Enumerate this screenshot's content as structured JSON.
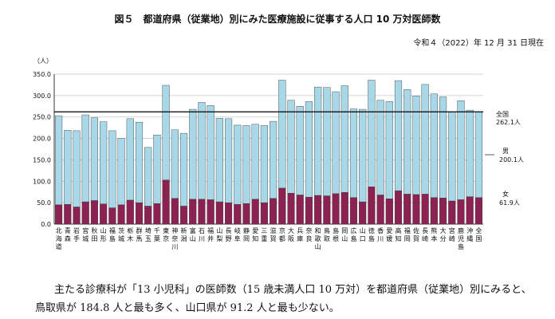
{
  "page": {
    "title": "図５　都道府県（従業地）別にみた医療施設に従事する人口 10 万対医師数",
    "date": "令和４（2022）年 12 月 31 日現在",
    "caption_line1": "主たる診療科が「13 小児科」の医師数（15 歳未満人口 10 万対）を都道府県（従業地）別にみると、",
    "caption_line2": "鳥取県が 184.8 人と最も多く、山口県が 91.2 人と最も少ない。"
  },
  "colors": {
    "male": "#a8d8e8",
    "female": "#8b2252",
    "grid": "#c8c8c8",
    "axis": "#333333",
    "nationline": "#000000"
  },
  "chart_data": {
    "type": "bar",
    "stacked": true,
    "ylabel": "（人）",
    "ylim": [
      0,
      350
    ],
    "yticks": [
      "0.0",
      "50.0",
      "100.0",
      "150.0",
      "200.0",
      "250.0",
      "300.0",
      "350.0"
    ],
    "categories": [
      "北海道",
      "青森",
      "岩手",
      "宮城",
      "秋田",
      "山形",
      "福島",
      "茨城",
      "栃木",
      "群馬",
      "埼玉",
      "千葉",
      "東京",
      "神奈川",
      "新潟",
      "富山",
      "石川",
      "福井",
      "山梨",
      "長野",
      "岐阜",
      "静岡",
      "愛知",
      "三重",
      "滋賀",
      "京都",
      "大阪",
      "兵庫",
      "奈良",
      "和歌山",
      "鳥取",
      "島根",
      "岡山",
      "広島",
      "山口",
      "徳島",
      "香川",
      "愛媛",
      "高知",
      "福岡",
      "佐賀",
      "長崎",
      "熊本",
      "大分",
      "宮崎",
      "鹿児島",
      "沖縄",
      "全国"
    ],
    "series": [
      {
        "name": "女",
        "values": [
          45,
          46,
          40,
          52,
          55,
          47,
          38,
          45,
          56,
          50,
          42,
          48,
          103,
          60,
          42,
          58,
          58,
          57,
          52,
          50,
          46,
          48,
          58,
          50,
          60,
          84,
          72,
          68,
          63,
          67,
          66,
          71,
          74,
          62,
          52,
          87,
          68,
          59,
          78,
          70,
          69,
          70,
          62,
          61,
          54,
          57,
          64,
          61.9
        ]
      },
      {
        "name": "男",
        "values": [
          208,
          173,
          178,
          203,
          193,
          192,
          180,
          155,
          190,
          188,
          137,
          160,
          221,
          160,
          170,
          210,
          226,
          220,
          195,
          196,
          185,
          182,
          175,
          180,
          180,
          252,
          217,
          207,
          223,
          253,
          253,
          238,
          249,
          207,
          216,
          249,
          221,
          227,
          257,
          244,
          230,
          256,
          242,
          236,
          208,
          231,
          202,
          200.1
        ]
      }
    ],
    "national_total": {
      "label": "全国",
      "value": 262.1,
      "unit_label": "262.1人"
    },
    "legend_male": {
      "label": "男",
      "value": "200.1人"
    },
    "legend_female": {
      "label": "女",
      "value": "61.9人"
    }
  }
}
